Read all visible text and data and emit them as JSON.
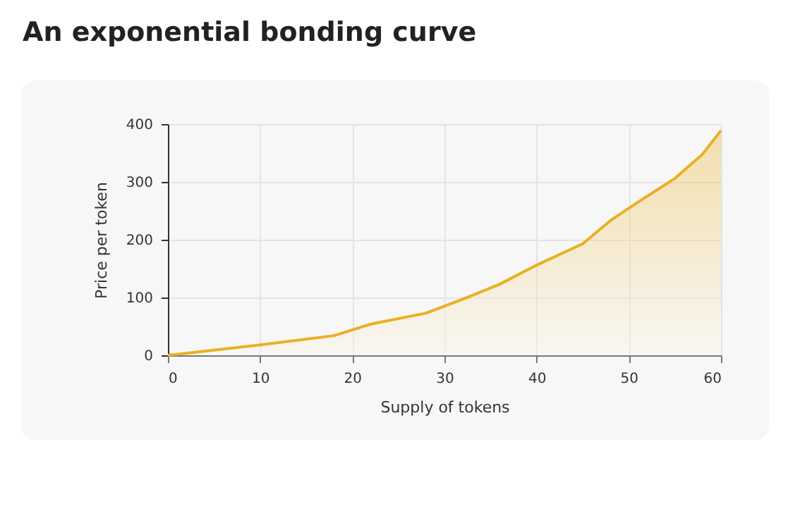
{
  "chart_data": {
    "type": "area",
    "title": "An exponential bonding curve",
    "xlabel": "Supply of tokens",
    "ylabel": "Price per token",
    "x": [
      0,
      10,
      18,
      22,
      28,
      32,
      36,
      40,
      45,
      48,
      51,
      55,
      58,
      60
    ],
    "series": [
      {
        "color": "#e9b021",
        "values": [
          0,
          18,
          34,
          54,
          73,
          97,
          123,
          156,
          193,
          233,
          265,
          306,
          348,
          389
        ]
      }
    ],
    "xlim": [
      0,
      60
    ],
    "xticks": [
      0,
      10,
      20,
      30,
      40,
      50,
      60
    ],
    "ylim": [
      0,
      400
    ],
    "yticks": [
      0,
      100,
      200,
      300,
      400
    ],
    "grid": true
  }
}
